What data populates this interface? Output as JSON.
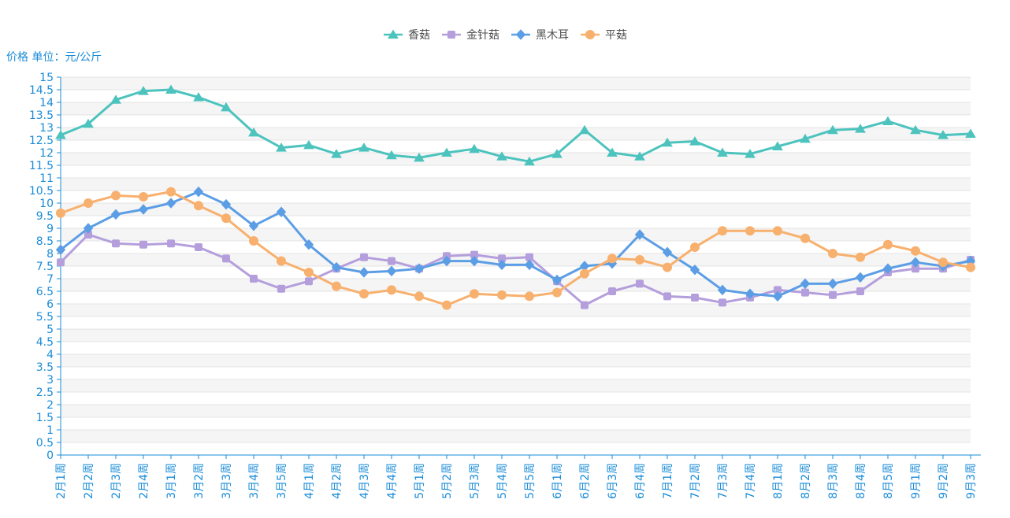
{
  "title": "价格 单位：元/公斤",
  "colors": {
    "axis_label": "#1a8cd8",
    "axis_line": "#1a8cd8",
    "legend_text": "#4d4d4d",
    "gridline": "#e4e4e4",
    "stripe": "#f5f5f5"
  },
  "chart_data": {
    "type": "line",
    "title": "价格 单位：元/公斤",
    "xlabel": "",
    "ylabel": "价格 单位：元/公斤",
    "ylim": [
      0,
      15
    ],
    "ytick_step": 0.5,
    "grid": true,
    "legend_position": "top",
    "categories": [
      "2月1周",
      "2月2周",
      "2月3周",
      "2月4周",
      "3月1周",
      "3月2周",
      "3月3周",
      "3月4周",
      "3月5周",
      "4月1周",
      "4月2周",
      "4月3周",
      "4月4周",
      "5月1周",
      "5月2周",
      "5月3周",
      "5月4周",
      "5月5周",
      "6月1周",
      "6月2周",
      "6月3周",
      "6月4周",
      "7月1周",
      "7月2周",
      "7月3周",
      "7月4周",
      "8月1周",
      "8月2周",
      "8月3周",
      "8月4周",
      "8月5周",
      "9月1周",
      "9月2周",
      "9月3周"
    ],
    "series": [
      {
        "name": "香菇",
        "marker": "triangle",
        "color": "#4dc3be",
        "values": [
          12.7,
          13.15,
          14.1,
          14.45,
          14.5,
          14.2,
          13.8,
          12.8,
          12.2,
          12.3,
          11.95,
          12.2,
          11.9,
          11.8,
          12.0,
          12.15,
          11.85,
          11.65,
          11.95,
          12.9,
          12.0,
          11.85,
          12.4,
          12.45,
          12.0,
          11.95,
          12.25,
          12.55,
          12.9,
          12.95,
          13.25,
          12.9,
          12.7,
          12.75
        ]
      },
      {
        "name": "金针菇",
        "marker": "square",
        "color": "#b49fdc",
        "values": [
          7.65,
          8.75,
          8.4,
          8.35,
          8.4,
          8.25,
          7.8,
          7.0,
          6.6,
          6.9,
          7.4,
          7.85,
          7.7,
          7.4,
          7.9,
          7.95,
          7.8,
          7.85,
          6.9,
          5.95,
          6.5,
          6.8,
          6.3,
          6.25,
          6.05,
          6.25,
          6.55,
          6.45,
          6.35,
          6.5,
          7.25,
          7.4,
          7.4,
          7.75
        ]
      },
      {
        "name": "黑木耳",
        "marker": "diamond",
        "color": "#5c9ee5",
        "values": [
          8.15,
          9.0,
          9.55,
          9.75,
          10.0,
          10.45,
          9.95,
          9.1,
          9.65,
          8.35,
          7.45,
          7.25,
          7.3,
          7.4,
          7.7,
          7.7,
          7.55,
          7.55,
          6.95,
          7.5,
          7.6,
          8.75,
          8.05,
          7.35,
          6.55,
          6.4,
          6.3,
          6.8,
          6.8,
          7.05,
          7.4,
          7.65,
          7.5,
          7.7
        ]
      },
      {
        "name": "平菇",
        "marker": "circle",
        "color": "#f7b06e",
        "values": [
          9.6,
          10.0,
          10.3,
          10.25,
          10.45,
          9.9,
          9.4,
          8.5,
          7.7,
          7.25,
          6.7,
          6.4,
          6.55,
          6.3,
          5.95,
          6.4,
          6.35,
          6.3,
          6.45,
          7.2,
          7.8,
          7.75,
          7.45,
          8.25,
          8.9,
          8.9,
          8.9,
          8.6,
          8.0,
          7.85,
          8.35,
          8.1,
          7.65,
          7.45
        ]
      }
    ]
  }
}
